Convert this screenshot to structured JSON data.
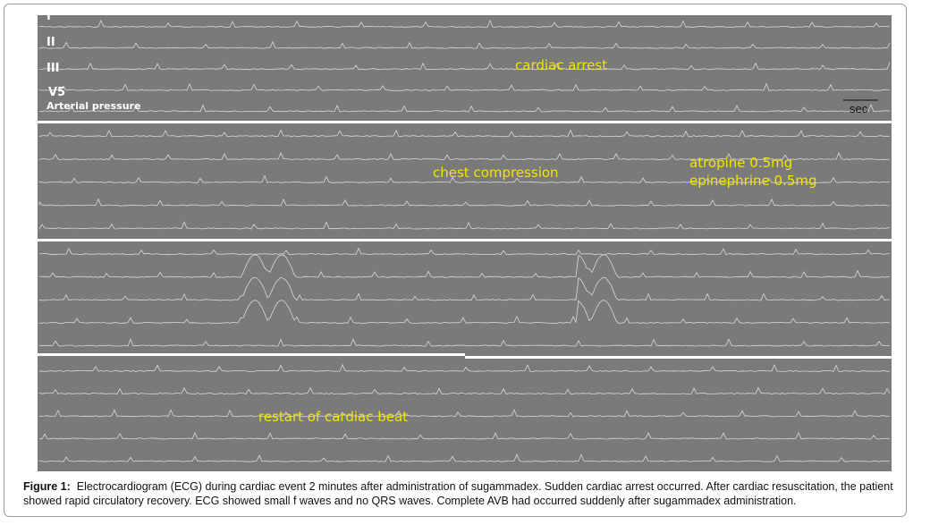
{
  "panel1": {
    "leads": [
      "I",
      "II",
      "III",
      "V5"
    ],
    "pressure_label": "Arterial pressure",
    "annotation": "cardiac arrest",
    "scale_label": "sec"
  },
  "panel2": {
    "annotations": [
      "chest compression",
      "atropine 0.5mg",
      "epinephrine 0.5mg"
    ]
  },
  "panel4": {
    "annotation": "restart of cardiac beat"
  },
  "caption": {
    "label": "Figure 1:",
    "text": "Electrocardiogram (ECG) during cardiac event 2 minutes after administration of sugammadex. Sudden cardiac arrest occurred. After cardiac resuscitation, the patient showed rapid circulatory recovery. ECG showed small f waves and no QRS waves. Complete AVB had occurred suddenly after sugammadex administration."
  }
}
